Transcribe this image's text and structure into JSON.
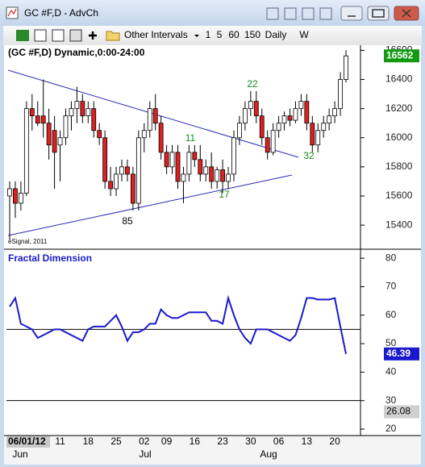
{
  "window": {
    "title": "GC #F,D - AdvCh",
    "toolbar": {
      "menu": "Other Intervals",
      "intervals": [
        "1",
        "5",
        "60",
        "150",
        "Daily",
        "W"
      ]
    }
  },
  "chart_data": [
    {
      "type": "candlestick",
      "title": "(GC #F,D) Dynamic,0:00-24:00",
      "copyright": "eSignal, 2011",
      "categories": [
        null,
        null,
        null,
        "06/01/12",
        null,
        null,
        null,
        null,
        null,
        "11",
        null,
        null,
        null,
        null,
        "18",
        null,
        null,
        null,
        null,
        "25",
        null,
        null,
        null,
        null,
        "02",
        null,
        null,
        null,
        "09",
        null,
        null,
        null,
        null,
        "16",
        null,
        null,
        null,
        null,
        "23",
        null,
        null,
        null,
        null,
        "30",
        null,
        null,
        null,
        null,
        "06",
        null,
        null,
        null,
        null,
        "13",
        null,
        null,
        null,
        null,
        "20",
        null,
        null
      ],
      "months": [
        "Jun",
        "Jul",
        "Aug"
      ],
      "open": [
        15600,
        15650,
        15550,
        15620,
        16200,
        16150,
        16150,
        16100,
        16050,
        15950,
        16000,
        16150,
        16200,
        16250,
        16150,
        16200,
        16050,
        16000,
        15700,
        15650,
        15750,
        15800,
        15750,
        15550,
        16000,
        16050,
        16200,
        16100,
        15900,
        15800,
        15900,
        15700,
        15750,
        15900,
        15850,
        15750,
        15800,
        15700,
        15780,
        15700,
        15750,
        16000,
        16100,
        16200,
        16250,
        16150,
        16000,
        15900,
        16050,
        16100,
        16150,
        16120,
        16200,
        16250,
        16100,
        15950,
        16050,
        16100,
        16150,
        16200,
        16400
      ],
      "high": [
        15700,
        15700,
        15700,
        16250,
        16300,
        16250,
        16400,
        16200,
        16150,
        16050,
        16200,
        16250,
        16350,
        16300,
        16250,
        16250,
        16100,
        16050,
        15800,
        15800,
        15850,
        15850,
        15800,
        16050,
        16100,
        16250,
        16300,
        16150,
        15950,
        15950,
        15950,
        15800,
        15950,
        15950,
        15950,
        15850,
        15900,
        15800,
        15850,
        15800,
        16050,
        16150,
        16250,
        16320,
        16320,
        16200,
        16050,
        16100,
        16150,
        16180,
        16200,
        16250,
        16300,
        16300,
        16150,
        16100,
        16150,
        16200,
        16250,
        16450,
        16600
      ],
      "low": [
        15300,
        15450,
        15500,
        15600,
        16050,
        16080,
        16000,
        15850,
        15650,
        15700,
        15950,
        16050,
        16100,
        16100,
        16100,
        16000,
        15950,
        15650,
        15600,
        15600,
        15700,
        15700,
        15500,
        15500,
        15900,
        16000,
        16050,
        15850,
        15750,
        15750,
        15650,
        15550,
        15700,
        15800,
        15700,
        15700,
        15650,
        15650,
        15620,
        15650,
        15700,
        15950,
        16050,
        16150,
        16100,
        15950,
        15850,
        15880,
        16000,
        16050,
        16080,
        16100,
        16150,
        16050,
        15900,
        15900,
        16000,
        16050,
        16100,
        16150,
        16380
      ],
      "close": [
        15650,
        15550,
        15620,
        16200,
        16150,
        16100,
        16100,
        15950,
        15900,
        16000,
        16150,
        16200,
        16250,
        16150,
        16200,
        16050,
        16000,
        15700,
        15650,
        15750,
        15800,
        15750,
        15550,
        16000,
        16050,
        16200,
        16100,
        15900,
        15800,
        15900,
        15700,
        15750,
        15900,
        15850,
        15750,
        15800,
        15700,
        15780,
        15700,
        15750,
        16000,
        16100,
        16200,
        16250,
        16150,
        16000,
        15900,
        16050,
        16100,
        16150,
        16120,
        16200,
        16250,
        16100,
        15950,
        16050,
        16100,
        16150,
        16200,
        16400,
        16562
      ],
      "up_color": "#ffffff",
      "down_color": "#e02020",
      "annotations": [
        "85",
        "11",
        "17",
        "22",
        "32"
      ],
      "ylim": [
        15240,
        16630
      ],
      "yticks": [
        15400,
        15600,
        15800,
        16000,
        16200,
        16400,
        16600
      ]
    },
    {
      "type": "line",
      "title": "Fractal Dimension",
      "color": "#1a1acc",
      "values": [
        63,
        66,
        57,
        56,
        55,
        52,
        53,
        54,
        55,
        55,
        54,
        53,
        52,
        51,
        55,
        56,
        56,
        56,
        58,
        60,
        56,
        51,
        54,
        54,
        55,
        57,
        57,
        62,
        60,
        59,
        59,
        60,
        61,
        61,
        61,
        61,
        58,
        58,
        57,
        66,
        60,
        55,
        52,
        50,
        55,
        55,
        55,
        54,
        53,
        52,
        51,
        53,
        59,
        66,
        66,
        65.5,
        65.5,
        65.5,
        66,
        56,
        46.39
      ],
      "levels": [
        55,
        30
      ],
      "extra_value": 26.08,
      "ylim": [
        18.3,
        82.3
      ],
      "yticks": [
        20,
        30,
        40,
        50,
        60,
        70,
        80
      ]
    }
  ]
}
